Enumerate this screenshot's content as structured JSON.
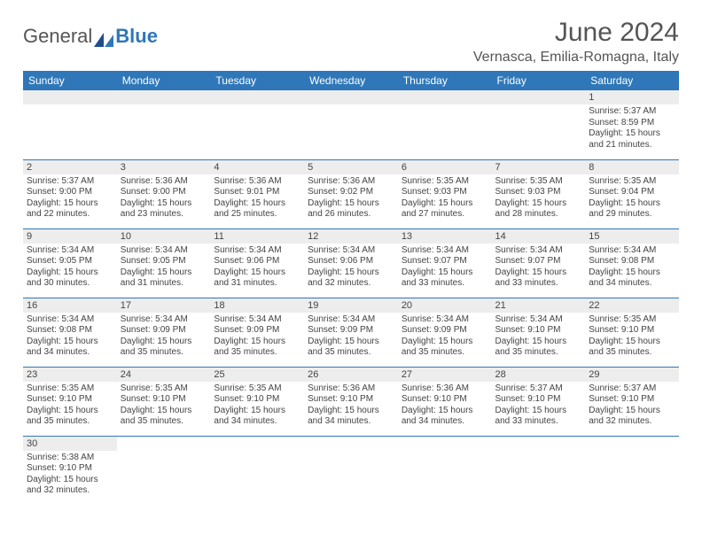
{
  "brand": {
    "part1": "General",
    "part2": "Blue"
  },
  "title": "June 2024",
  "location": "Vernasca, Emilia-Romagna, Italy",
  "colors": {
    "header_bg": "#2f77b8",
    "header_text": "#ffffff",
    "daynum_bg": "#ededed",
    "border": "#2f77b8",
    "text": "#444444",
    "title_text": "#555555"
  },
  "weekdays": [
    "Sunday",
    "Monday",
    "Tuesday",
    "Wednesday",
    "Thursday",
    "Friday",
    "Saturday"
  ],
  "weeks": [
    [
      null,
      null,
      null,
      null,
      null,
      null,
      {
        "n": "1",
        "sr": "Sunrise: 5:37 AM",
        "ss": "Sunset: 8:59 PM",
        "d1": "Daylight: 15 hours",
        "d2": "and 21 minutes."
      }
    ],
    [
      {
        "n": "2",
        "sr": "Sunrise: 5:37 AM",
        "ss": "Sunset: 9:00 PM",
        "d1": "Daylight: 15 hours",
        "d2": "and 22 minutes."
      },
      {
        "n": "3",
        "sr": "Sunrise: 5:36 AM",
        "ss": "Sunset: 9:00 PM",
        "d1": "Daylight: 15 hours",
        "d2": "and 23 minutes."
      },
      {
        "n": "4",
        "sr": "Sunrise: 5:36 AM",
        "ss": "Sunset: 9:01 PM",
        "d1": "Daylight: 15 hours",
        "d2": "and 25 minutes."
      },
      {
        "n": "5",
        "sr": "Sunrise: 5:36 AM",
        "ss": "Sunset: 9:02 PM",
        "d1": "Daylight: 15 hours",
        "d2": "and 26 minutes."
      },
      {
        "n": "6",
        "sr": "Sunrise: 5:35 AM",
        "ss": "Sunset: 9:03 PM",
        "d1": "Daylight: 15 hours",
        "d2": "and 27 minutes."
      },
      {
        "n": "7",
        "sr": "Sunrise: 5:35 AM",
        "ss": "Sunset: 9:03 PM",
        "d1": "Daylight: 15 hours",
        "d2": "and 28 minutes."
      },
      {
        "n": "8",
        "sr": "Sunrise: 5:35 AM",
        "ss": "Sunset: 9:04 PM",
        "d1": "Daylight: 15 hours",
        "d2": "and 29 minutes."
      }
    ],
    [
      {
        "n": "9",
        "sr": "Sunrise: 5:34 AM",
        "ss": "Sunset: 9:05 PM",
        "d1": "Daylight: 15 hours",
        "d2": "and 30 minutes."
      },
      {
        "n": "10",
        "sr": "Sunrise: 5:34 AM",
        "ss": "Sunset: 9:05 PM",
        "d1": "Daylight: 15 hours",
        "d2": "and 31 minutes."
      },
      {
        "n": "11",
        "sr": "Sunrise: 5:34 AM",
        "ss": "Sunset: 9:06 PM",
        "d1": "Daylight: 15 hours",
        "d2": "and 31 minutes."
      },
      {
        "n": "12",
        "sr": "Sunrise: 5:34 AM",
        "ss": "Sunset: 9:06 PM",
        "d1": "Daylight: 15 hours",
        "d2": "and 32 minutes."
      },
      {
        "n": "13",
        "sr": "Sunrise: 5:34 AM",
        "ss": "Sunset: 9:07 PM",
        "d1": "Daylight: 15 hours",
        "d2": "and 33 minutes."
      },
      {
        "n": "14",
        "sr": "Sunrise: 5:34 AM",
        "ss": "Sunset: 9:07 PM",
        "d1": "Daylight: 15 hours",
        "d2": "and 33 minutes."
      },
      {
        "n": "15",
        "sr": "Sunrise: 5:34 AM",
        "ss": "Sunset: 9:08 PM",
        "d1": "Daylight: 15 hours",
        "d2": "and 34 minutes."
      }
    ],
    [
      {
        "n": "16",
        "sr": "Sunrise: 5:34 AM",
        "ss": "Sunset: 9:08 PM",
        "d1": "Daylight: 15 hours",
        "d2": "and 34 minutes."
      },
      {
        "n": "17",
        "sr": "Sunrise: 5:34 AM",
        "ss": "Sunset: 9:09 PM",
        "d1": "Daylight: 15 hours",
        "d2": "and 35 minutes."
      },
      {
        "n": "18",
        "sr": "Sunrise: 5:34 AM",
        "ss": "Sunset: 9:09 PM",
        "d1": "Daylight: 15 hours",
        "d2": "and 35 minutes."
      },
      {
        "n": "19",
        "sr": "Sunrise: 5:34 AM",
        "ss": "Sunset: 9:09 PM",
        "d1": "Daylight: 15 hours",
        "d2": "and 35 minutes."
      },
      {
        "n": "20",
        "sr": "Sunrise: 5:34 AM",
        "ss": "Sunset: 9:09 PM",
        "d1": "Daylight: 15 hours",
        "d2": "and 35 minutes."
      },
      {
        "n": "21",
        "sr": "Sunrise: 5:34 AM",
        "ss": "Sunset: 9:10 PM",
        "d1": "Daylight: 15 hours",
        "d2": "and 35 minutes."
      },
      {
        "n": "22",
        "sr": "Sunrise: 5:35 AM",
        "ss": "Sunset: 9:10 PM",
        "d1": "Daylight: 15 hours",
        "d2": "and 35 minutes."
      }
    ],
    [
      {
        "n": "23",
        "sr": "Sunrise: 5:35 AM",
        "ss": "Sunset: 9:10 PM",
        "d1": "Daylight: 15 hours",
        "d2": "and 35 minutes."
      },
      {
        "n": "24",
        "sr": "Sunrise: 5:35 AM",
        "ss": "Sunset: 9:10 PM",
        "d1": "Daylight: 15 hours",
        "d2": "and 35 minutes."
      },
      {
        "n": "25",
        "sr": "Sunrise: 5:35 AM",
        "ss": "Sunset: 9:10 PM",
        "d1": "Daylight: 15 hours",
        "d2": "and 34 minutes."
      },
      {
        "n": "26",
        "sr": "Sunrise: 5:36 AM",
        "ss": "Sunset: 9:10 PM",
        "d1": "Daylight: 15 hours",
        "d2": "and 34 minutes."
      },
      {
        "n": "27",
        "sr": "Sunrise: 5:36 AM",
        "ss": "Sunset: 9:10 PM",
        "d1": "Daylight: 15 hours",
        "d2": "and 34 minutes."
      },
      {
        "n": "28",
        "sr": "Sunrise: 5:37 AM",
        "ss": "Sunset: 9:10 PM",
        "d1": "Daylight: 15 hours",
        "d2": "and 33 minutes."
      },
      {
        "n": "29",
        "sr": "Sunrise: 5:37 AM",
        "ss": "Sunset: 9:10 PM",
        "d1": "Daylight: 15 hours",
        "d2": "and 32 minutes."
      }
    ],
    [
      {
        "n": "30",
        "sr": "Sunrise: 5:38 AM",
        "ss": "Sunset: 9:10 PM",
        "d1": "Daylight: 15 hours",
        "d2": "and 32 minutes."
      },
      null,
      null,
      null,
      null,
      null,
      null
    ]
  ]
}
